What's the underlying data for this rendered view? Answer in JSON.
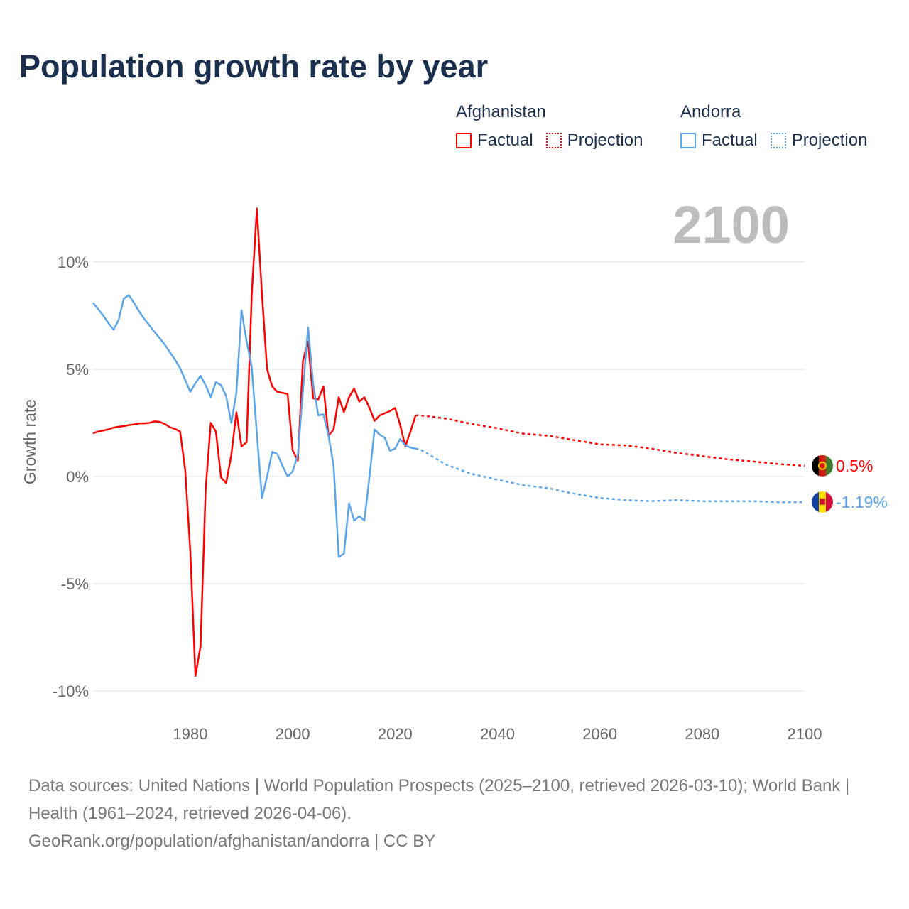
{
  "title": "Population growth rate by year",
  "legend": {
    "groups": [
      {
        "country": "Afghanistan",
        "color": "#ff0000",
        "factual": "Factual",
        "projection": "Projection"
      },
      {
        "country": "Andorra",
        "color": "#5aa5ea",
        "factual": "Factual",
        "projection": "Projection"
      }
    ]
  },
  "year_badge": "2100",
  "footer": {
    "line1": "Data sources: United Nations | World Population Prospects (2025–2100, retrieved 2026-03-10); World Bank | Health (1961–2024, retrieved 2026-04-06).",
    "line2": "GeoRank.org/population/afghanistan/andorra | CC BY"
  },
  "chart_data": {
    "type": "line",
    "title": "Population growth rate by year",
    "xlabel": "",
    "ylabel": "Growth rate",
    "xlim": [
      1961,
      2100
    ],
    "ylim": [
      -10.5,
      13
    ],
    "x_ticks": [
      1980,
      2000,
      2020,
      2040,
      2060,
      2080,
      2100
    ],
    "x_tick_labels": [
      "1980",
      "2000",
      "2020",
      "2040",
      "2060",
      "2080",
      "2100"
    ],
    "y_ticks": [
      10,
      5,
      0,
      -5,
      -10
    ],
    "y_tick_labels": [
      "10%",
      "5%",
      "0%",
      "-5%",
      "-10%"
    ],
    "grid": true,
    "series": [
      {
        "name": "Afghanistan",
        "color": "#ff0000",
        "end_label": "0.5%",
        "factual": {
          "start_year": 1961,
          "values": [
            2.02,
            2.1,
            2.15,
            2.2,
            2.28,
            2.32,
            2.35,
            2.4,
            2.43,
            2.48,
            2.48,
            2.5,
            2.57,
            2.55,
            2.45,
            2.3,
            2.22,
            2.1,
            0.3,
            -3.5,
            -9.3,
            -7.9,
            -0.6,
            2.5,
            2.1,
            -0.05,
            -0.3,
            1.0,
            3.0,
            1.4,
            1.6,
            8.5,
            12.5,
            8.5,
            5.0,
            4.2,
            3.95,
            3.9,
            3.85,
            1.2,
            0.75,
            5.4,
            6.3,
            3.65,
            3.6,
            4.2,
            1.9,
            2.2,
            3.7,
            3.0,
            3.7,
            4.1,
            3.5,
            3.7,
            3.2,
            2.6,
            2.85,
            2.95,
            3.05,
            3.2,
            2.4,
            1.4,
            2.1,
            2.85
          ]
        },
        "projection": [
          [
            2024,
            2.85
          ],
          [
            2025,
            2.85
          ],
          [
            2030,
            2.7
          ],
          [
            2035,
            2.45
          ],
          [
            2040,
            2.25
          ],
          [
            2045,
            2.0
          ],
          [
            2050,
            1.9
          ],
          [
            2055,
            1.7
          ],
          [
            2060,
            1.5
          ],
          [
            2065,
            1.45
          ],
          [
            2070,
            1.3
          ],
          [
            2075,
            1.1
          ],
          [
            2080,
            0.95
          ],
          [
            2085,
            0.8
          ],
          [
            2090,
            0.7
          ],
          [
            2095,
            0.58
          ],
          [
            2100,
            0.5
          ]
        ]
      },
      {
        "name": "Andorra",
        "color": "#5aa5ea",
        "end_label": "-1.19%",
        "factual": {
          "start_year": 1961,
          "values": [
            8.1,
            7.8,
            7.5,
            7.15,
            6.85,
            7.3,
            8.3,
            8.45,
            8.1,
            7.7,
            7.35,
            7.05,
            6.75,
            6.45,
            6.15,
            5.8,
            5.45,
            5.05,
            4.5,
            3.95,
            4.35,
            4.7,
            4.25,
            3.7,
            4.4,
            4.25,
            3.75,
            2.5,
            3.9,
            7.75,
            6.3,
            5.1,
            2.0,
            -1.0,
            0.0,
            1.15,
            1.05,
            0.5,
            0.0,
            0.25,
            1.0,
            4.0,
            6.95,
            4.3,
            2.85,
            2.9,
            1.9,
            0.5,
            -3.75,
            -3.6,
            -1.25,
            -2.05,
            -1.85,
            -2.05,
            0.0,
            2.2,
            1.95,
            1.8,
            1.2,
            1.3,
            1.75,
            1.45,
            1.35,
            1.3
          ]
        },
        "projection": [
          [
            2024,
            1.3
          ],
          [
            2025,
            1.25
          ],
          [
            2030,
            0.55
          ],
          [
            2035,
            0.12
          ],
          [
            2040,
            -0.15
          ],
          [
            2045,
            -0.4
          ],
          [
            2050,
            -0.55
          ],
          [
            2055,
            -0.8
          ],
          [
            2060,
            -1.0
          ],
          [
            2065,
            -1.1
          ],
          [
            2070,
            -1.15
          ],
          [
            2075,
            -1.1
          ],
          [
            2080,
            -1.15
          ],
          [
            2085,
            -1.15
          ],
          [
            2090,
            -1.15
          ],
          [
            2095,
            -1.2
          ],
          [
            2100,
            -1.19
          ]
        ]
      }
    ]
  }
}
